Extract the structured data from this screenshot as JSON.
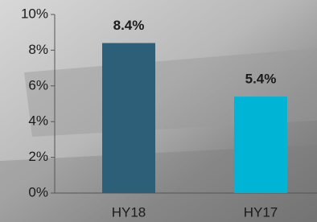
{
  "chart_data": {
    "type": "bar",
    "categories": [
      "HY18",
      "HY17"
    ],
    "values": [
      8.4,
      5.4
    ],
    "value_labels": [
      "8.4%",
      "5.4%"
    ],
    "colors": [
      "#2e5f78",
      "#00b4d6"
    ],
    "ylim": [
      0,
      10
    ],
    "yticks": [
      {
        "value": 0,
        "label": "0%"
      },
      {
        "value": 2,
        "label": "2%"
      },
      {
        "value": 4,
        "label": "4%"
      },
      {
        "value": 6,
        "label": "6%"
      },
      {
        "value": 8,
        "label": "8%"
      },
      {
        "value": 10,
        "label": "10%"
      }
    ]
  }
}
